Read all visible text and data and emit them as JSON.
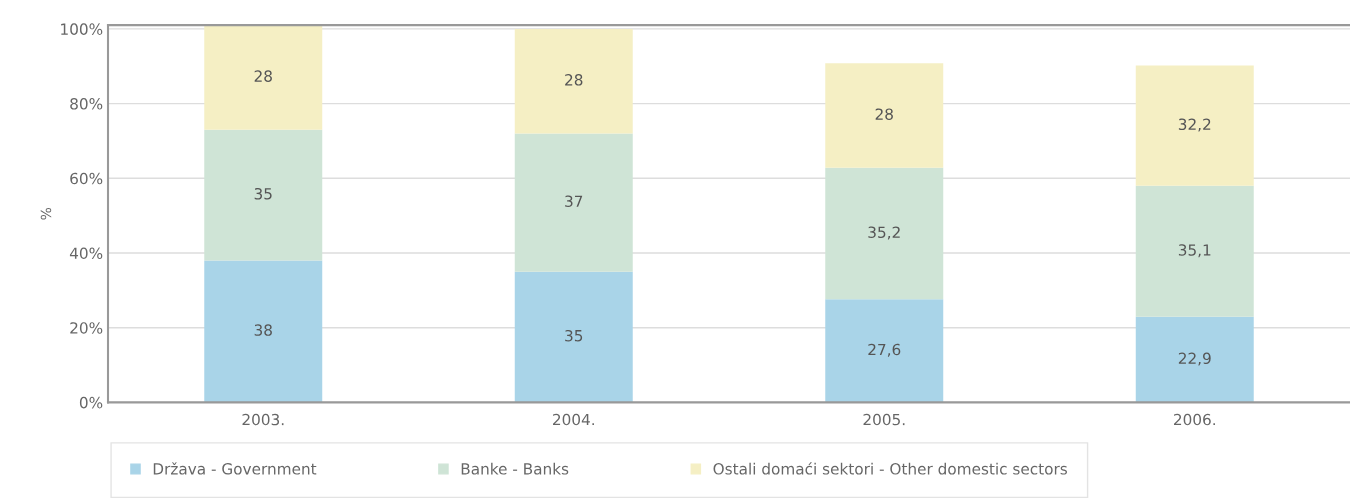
{
  "chart_data": {
    "type": "bar",
    "stacked": true,
    "ylabel": "%",
    "categories": [
      "2003.",
      "2004.",
      "2005.",
      "2006."
    ],
    "series": [
      {
        "name": "Država - Government",
        "color": "#a9d4e8",
        "values": [
          38,
          35,
          27.6,
          22.9
        ],
        "value_labels": [
          "38",
          "35",
          "27,6",
          "22,9"
        ]
      },
      {
        "name": "Banke - Banks",
        "color": "#cfe4d6",
        "values": [
          35,
          37,
          35.2,
          35.1
        ],
        "value_labels": [
          "35",
          "37",
          "35,2",
          "35,1"
        ]
      },
      {
        "name": "Ostali domaći sektori - Other domestic sectors",
        "color": "#f5efc4",
        "values": [
          28,
          28,
          28,
          32.2
        ],
        "value_labels": [
          "28",
          "28",
          "28",
          "32,2"
        ]
      }
    ],
    "ylim": [
      0,
      101
    ],
    "yticks": [
      {
        "value": 0,
        "label": "0%"
      },
      {
        "value": 20,
        "label": "20%"
      },
      {
        "value": 40,
        "label": "40%"
      },
      {
        "value": 60,
        "label": "60%"
      },
      {
        "value": 80,
        "label": "80%"
      },
      {
        "value": 100,
        "label": "100%"
      }
    ],
    "grid": "y",
    "legend": "bottom"
  }
}
